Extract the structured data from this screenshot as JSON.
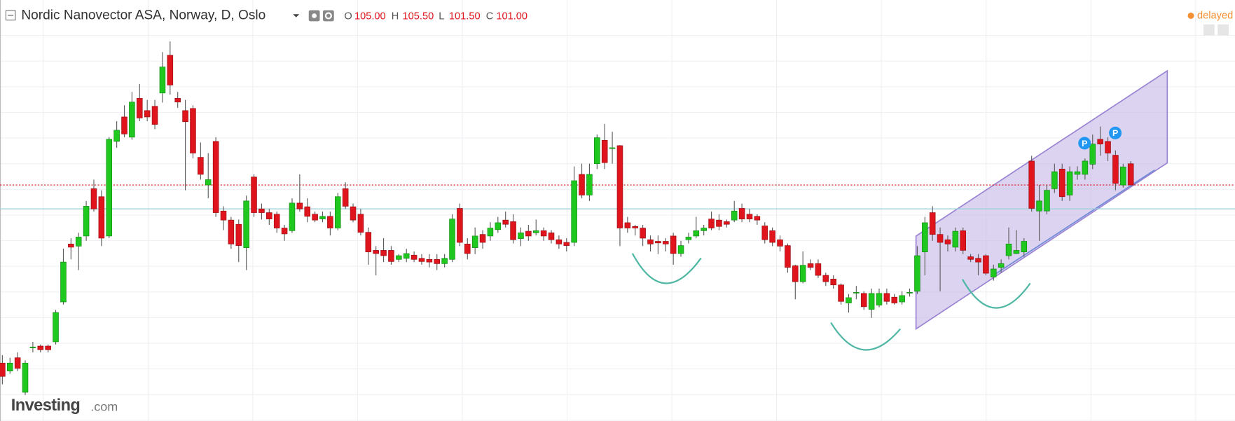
{
  "header": {
    "title": "Nordic Nanovector ASA, Norway, D, Oslo",
    "ohlc": [
      {
        "key": "O",
        "label": "105.00"
      },
      {
        "key": "H",
        "label": "105.50"
      },
      {
        "key": "L",
        "label": "101.50"
      },
      {
        "key": "C",
        "label": "101.00"
      }
    ],
    "status": "delayed"
  },
  "logo": {
    "name": "Investing",
    "suffix": ".com"
  },
  "chart_data": {
    "type": "candlestick",
    "up_color": "#1ec81e",
    "down_color": "#e0141c",
    "ylim": [
      56.6,
      135.8
    ],
    "grid": true,
    "last_price_line": true,
    "last_price_color": "#e0141c",
    "hlines": [
      {
        "value": 96.5,
        "color": "#9fd0dc"
      }
    ],
    "open": [
      67.5,
      66,
      68.5,
      62,
      70.5,
      70.7,
      70.7,
      71.5,
      79,
      89.9,
      89.5,
      91.4,
      100.3,
      98.8,
      91.4,
      109.2,
      113.8,
      110,
      117.3,
      115,
      115.8,
      118.3,
      125.4,
      117.3,
      115,
      115.4,
      106.2,
      101,
      109.2,
      96.1,
      94.4,
      93.6,
      89.2,
      102.5,
      96.5,
      95.8,
      95.5,
      92.9,
      92.4,
      97.6,
      96.9,
      95.5,
      94.6,
      95.1,
      92.9,
      100.3,
      96.9,
      95.5,
      92.1,
      88.7,
      88.7,
      88.7,
      87,
      87.2,
      87.8,
      87.2,
      87,
      87,
      86.2,
      87,
      96.6,
      89.9,
      89.2,
      91.7,
      91.4,
      92.6,
      94.4,
      94.1,
      90.9,
      92.3,
      92,
      92.4,
      92,
      90.7,
      90.2,
      90.2,
      103,
      99.1,
      105,
      109.4,
      108,
      108.4,
      93.9,
      93.2,
      92.9,
      90.7,
      90.4,
      90.4,
      91.4,
      88.1,
      90.7,
      91.4,
      92.4,
      94.6,
      94.4,
      94.1,
      94.4,
      96.6,
      95.5,
      95.1,
      93.3,
      92.4,
      90.7,
      89.6,
      85.8,
      82.8,
      86.2,
      86.2,
      84,
      83.3,
      82.2,
      78.8,
      80.8,
      80.6,
      77.6,
      78.4,
      80.6,
      79.9,
      79,
      80.8,
      81,
      88.4,
      95.8,
      91.7,
      90.7,
      89.3,
      92.4,
      87.5,
      87.2,
      87.7,
      83.7,
      85.5,
      87.7,
      88.1,
      88.4,
      105.5,
      96.1,
      96.1,
      100.3,
      104,
      99.1,
      103,
      103,
      104.9,
      109.6,
      109.2,
      106.6,
      101,
      105
    ],
    "high": [
      69,
      68.5,
      69.5,
      68,
      71.5,
      71,
      71,
      77.5,
      89,
      91,
      92,
      98,
      102,
      100,
      110,
      113,
      116,
      118.5,
      120,
      117,
      117,
      126,
      128,
      118.5,
      117,
      116,
      109,
      107,
      110,
      97,
      95,
      94.5,
      99,
      103,
      97.5,
      96.5,
      96,
      93.5,
      98.5,
      103,
      98.5,
      96,
      96,
      96,
      99.5,
      101.5,
      97.5,
      96.5,
      93,
      89.5,
      91,
      89.5,
      88,
      89,
      88.5,
      88,
      88,
      88,
      88,
      95.5,
      97.5,
      91,
      93,
      92.5,
      94,
      95,
      96,
      95.5,
      93,
      93.5,
      94.5,
      93,
      92.5,
      91.5,
      91,
      104.5,
      105,
      105,
      110.5,
      112.5,
      111,
      108.5,
      95,
      93.5,
      93.5,
      91.5,
      91.5,
      91,
      92,
      90.5,
      92,
      95,
      93.5,
      96,
      95.5,
      94.5,
      98,
      97.5,
      96.5,
      95.5,
      94,
      93,
      91.5,
      90,
      86,
      88.5,
      87,
      87,
      84.5,
      84,
      82.5,
      80.5,
      82,
      81,
      81.5,
      81.5,
      81.5,
      80.5,
      81,
      81.5,
      89.5,
      95,
      97,
      93,
      91.5,
      93,
      93,
      88,
      88,
      88,
      86,
      87,
      93,
      92.5,
      91,
      106.5,
      101,
      101,
      105,
      105,
      104.5,
      104.5,
      106,
      110.5,
      112,
      110,
      107.5,
      105,
      105.5
    ],
    "low": [
      63.5,
      65.5,
      66,
      61.5,
      69.5,
      69.5,
      69.5,
      71,
      78.5,
      87,
      85,
      90.5,
      96,
      89.5,
      91,
      108,
      110,
      109.5,
      113,
      113,
      111.5,
      116.5,
      118,
      115.5,
      100,
      106,
      102,
      98.5,
      95,
      92.5,
      89,
      86.5,
      85,
      95,
      94.5,
      93.5,
      92,
      90.5,
      92,
      96,
      94,
      94,
      94,
      91.5,
      92.5,
      96.5,
      94,
      91.5,
      86,
      84,
      86.5,
      86,
      86.5,
      86.5,
      86.5,
      86,
      85.5,
      85,
      85.5,
      86.5,
      89.5,
      87,
      88,
      89,
      90.5,
      92,
      93,
      90,
      89.5,
      90.5,
      91.5,
      90.5,
      90,
      89,
      88.5,
      89.5,
      98.5,
      98,
      104,
      104,
      105,
      89.5,
      92,
      91.5,
      89.5,
      88.5,
      88,
      88.5,
      86,
      87.5,
      90,
      91,
      91.5,
      92.5,
      92.5,
      93,
      94,
      94,
      94,
      93.5,
      90,
      89.5,
      88.5,
      84.5,
      79.5,
      82.5,
      85,
      83.5,
      82,
      81.5,
      78.5,
      77,
      79.5,
      77.5,
      76,
      78,
      78.5,
      78.5,
      78.5,
      80,
      80.5,
      84,
      90.5,
      81,
      88.5,
      88.5,
      88,
      86.5,
      84,
      84,
      83,
      84.5,
      87,
      88,
      87.5,
      96,
      90.5,
      95.5,
      99.5,
      98,
      98,
      102,
      102,
      104,
      106.5,
      105.5,
      100,
      100.5,
      101.5
    ],
    "close": [
      65,
      67.5,
      66.5,
      67.5,
      70.5,
      70,
      70,
      77,
      86.5,
      89.3,
      91.2,
      97,
      96.5,
      91,
      109.6,
      111.3,
      110.6,
      116.6,
      113.6,
      113.8,
      112.4,
      123.2,
      119.8,
      116.6,
      112.9,
      107,
      103,
      102,
      95.8,
      94.4,
      89.9,
      89.6,
      98,
      95.8,
      95.8,
      94.6,
      92.9,
      91.8,
      97.6,
      96.5,
      95.1,
      94.4,
      95.1,
      92.9,
      98.8,
      97,
      94.4,
      92.1,
      88.4,
      88.1,
      87.7,
      86.6,
      87.7,
      88.1,
      87,
      86.6,
      86.5,
      86.2,
      87.2,
      94.6,
      90.2,
      88.1,
      91.4,
      90.2,
      92.9,
      93.9,
      93.6,
      90.7,
      92,
      91.4,
      92.4,
      91.4,
      90.7,
      89.9,
      89.6,
      101.8,
      99.1,
      103,
      109.9,
      105.2,
      108,
      92.9,
      92.9,
      92.9,
      91,
      89.9,
      90.1,
      89.9,
      88.1,
      89.6,
      91.2,
      92.4,
      92.9,
      92.9,
      93.2,
      93.6,
      96.1,
      94.6,
      94.6,
      94.4,
      90.7,
      90.2,
      89.5,
      85.5,
      82.8,
      85.9,
      85.5,
      84,
      82.8,
      82.2,
      79.1,
      79.8,
      80.8,
      78.1,
      80.6,
      80.6,
      79.1,
      78.8,
      80.2,
      80.8,
      87.7,
      93.9,
      91.7,
      90.2,
      89.9,
      92.3,
      88.7,
      87,
      86.5,
      84.4,
      85.2,
      86.2,
      89.9,
      88.7,
      90.4,
      96.6,
      98,
      100,
      103.5,
      98.8,
      103.5,
      103.5,
      105.5,
      108.7,
      108.7,
      107,
      101.3,
      104.4,
      101
    ],
    "annotations": [
      {
        "label": "P"
      },
      {
        "label": "P"
      }
    ]
  }
}
